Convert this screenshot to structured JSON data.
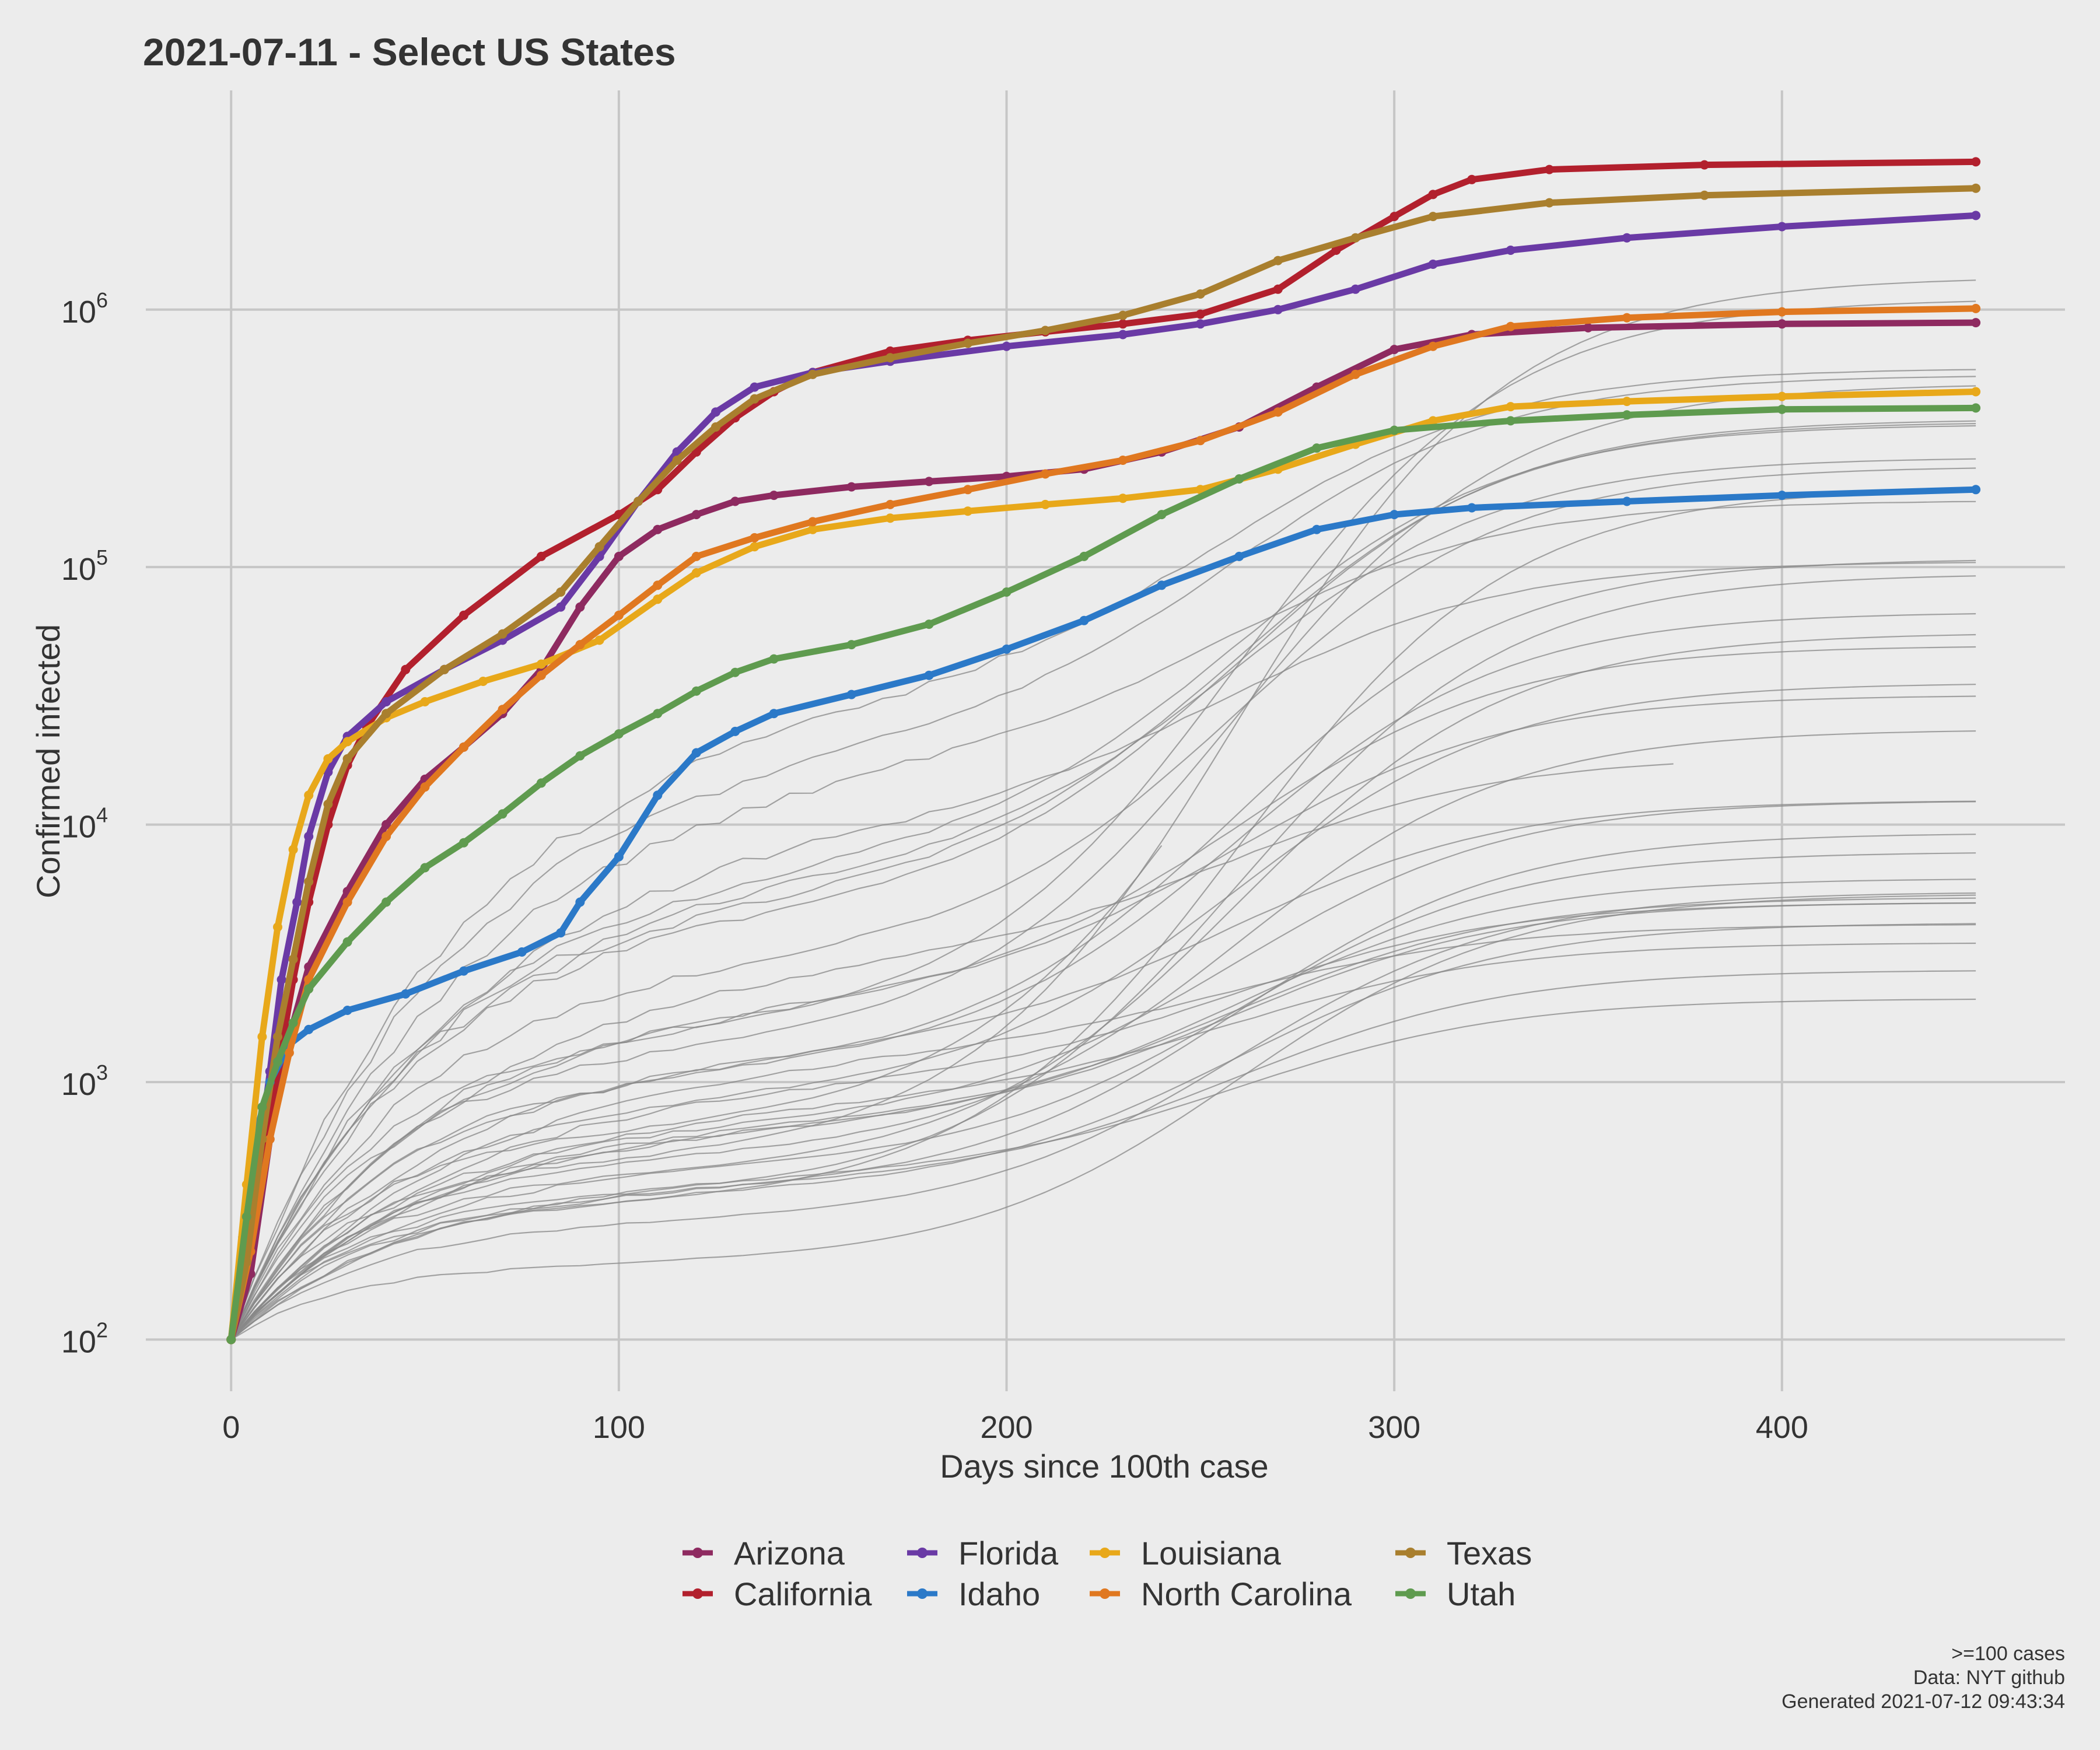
{
  "chart_data": {
    "type": "line",
    "title": "2021-07-11  - Select US States",
    "xlabel": "Days since 100th case",
    "ylabel": "Confirmed infected",
    "y_scale": "log",
    "xlim": [
      -22,
      473
    ],
    "ylim": [
      63,
      7100000
    ],
    "x_ticks": [
      0,
      100,
      200,
      300,
      400
    ],
    "y_ticks": [
      {
        "value": 100,
        "base": "10",
        "exp": "2"
      },
      {
        "value": 1000,
        "base": "10",
        "exp": "3"
      },
      {
        "value": 10000,
        "base": "10",
        "exp": "4"
      },
      {
        "value": 100000,
        "base": "10",
        "exp": "5"
      },
      {
        "value": 1000000,
        "base": "10",
        "exp": "6"
      }
    ],
    "grid": true,
    "legend_position": "bottom",
    "series": [
      {
        "name": "Arizona",
        "color": "#8e2a60",
        "points": [
          [
            0,
            100
          ],
          [
            5,
            180
          ],
          [
            10,
            600
          ],
          [
            15,
            1500
          ],
          [
            20,
            2800
          ],
          [
            30,
            5500
          ],
          [
            40,
            10000
          ],
          [
            50,
            15000
          ],
          [
            60,
            20000
          ],
          [
            70,
            27000
          ],
          [
            80,
            40000
          ],
          [
            90,
            70000
          ],
          [
            100,
            110000
          ],
          [
            110,
            140000
          ],
          [
            120,
            160000
          ],
          [
            130,
            180000
          ],
          [
            140,
            190000
          ],
          [
            160,
            205000
          ],
          [
            180,
            215000
          ],
          [
            200,
            225000
          ],
          [
            220,
            240000
          ],
          [
            240,
            280000
          ],
          [
            260,
            350000
          ],
          [
            280,
            500000
          ],
          [
            300,
            700000
          ],
          [
            320,
            800000
          ],
          [
            350,
            850000
          ],
          [
            400,
            880000
          ],
          [
            450,
            890000
          ]
        ]
      },
      {
        "name": "California",
        "color": "#b2202d",
        "points": [
          [
            0,
            100
          ],
          [
            4,
            200
          ],
          [
            8,
            500
          ],
          [
            12,
            1100
          ],
          [
            16,
            2500
          ],
          [
            20,
            5000
          ],
          [
            25,
            10000
          ],
          [
            30,
            17000
          ],
          [
            35,
            24000
          ],
          [
            45,
            40000
          ],
          [
            60,
            65000
          ],
          [
            80,
            110000
          ],
          [
            100,
            160000
          ],
          [
            110,
            200000
          ],
          [
            120,
            280000
          ],
          [
            130,
            380000
          ],
          [
            140,
            480000
          ],
          [
            150,
            570000
          ],
          [
            170,
            690000
          ],
          [
            190,
            760000
          ],
          [
            210,
            820000
          ],
          [
            230,
            880000
          ],
          [
            250,
            960000
          ],
          [
            270,
            1200000
          ],
          [
            285,
            1700000
          ],
          [
            300,
            2300000
          ],
          [
            310,
            2800000
          ],
          [
            320,
            3200000
          ],
          [
            340,
            3500000
          ],
          [
            380,
            3650000
          ],
          [
            450,
            3750000
          ]
        ]
      },
      {
        "name": "Florida",
        "color": "#6a3aa5",
        "points": [
          [
            0,
            100
          ],
          [
            3,
            200
          ],
          [
            7,
            500
          ],
          [
            10,
            1100
          ],
          [
            13,
            2500
          ],
          [
            17,
            5000
          ],
          [
            20,
            9000
          ],
          [
            25,
            16000
          ],
          [
            30,
            22000
          ],
          [
            40,
            30000
          ],
          [
            55,
            40000
          ],
          [
            70,
            52000
          ],
          [
            85,
            70000
          ],
          [
            95,
            110000
          ],
          [
            105,
            180000
          ],
          [
            115,
            280000
          ],
          [
            125,
            400000
          ],
          [
            135,
            500000
          ],
          [
            150,
            570000
          ],
          [
            170,
            630000
          ],
          [
            200,
            720000
          ],
          [
            230,
            800000
          ],
          [
            250,
            880000
          ],
          [
            270,
            1000000
          ],
          [
            290,
            1200000
          ],
          [
            310,
            1500000
          ],
          [
            330,
            1700000
          ],
          [
            360,
            1900000
          ],
          [
            400,
            2100000
          ],
          [
            450,
            2320000
          ]
        ]
      },
      {
        "name": "Idaho",
        "color": "#2b79c8",
        "points": [
          [
            0,
            100
          ],
          [
            3,
            250
          ],
          [
            6,
            600
          ],
          [
            10,
            1000
          ],
          [
            15,
            1400
          ],
          [
            20,
            1600
          ],
          [
            30,
            1900
          ],
          [
            45,
            2200
          ],
          [
            60,
            2700
          ],
          [
            75,
            3200
          ],
          [
            85,
            3800
          ],
          [
            90,
            5000
          ],
          [
            100,
            7500
          ],
          [
            110,
            13000
          ],
          [
            120,
            19000
          ],
          [
            130,
            23000
          ],
          [
            140,
            27000
          ],
          [
            160,
            32000
          ],
          [
            180,
            38000
          ],
          [
            200,
            48000
          ],
          [
            220,
            62000
          ],
          [
            240,
            85000
          ],
          [
            260,
            110000
          ],
          [
            280,
            140000
          ],
          [
            300,
            160000
          ],
          [
            320,
            170000
          ],
          [
            360,
            180000
          ],
          [
            400,
            190000
          ],
          [
            450,
            200000
          ]
        ]
      },
      {
        "name": "Louisiana",
        "color": "#e8a81a",
        "points": [
          [
            0,
            100
          ],
          [
            4,
            400
          ],
          [
            8,
            1500
          ],
          [
            12,
            4000
          ],
          [
            16,
            8000
          ],
          [
            20,
            13000
          ],
          [
            25,
            18000
          ],
          [
            30,
            21000
          ],
          [
            40,
            26000
          ],
          [
            50,
            30000
          ],
          [
            65,
            36000
          ],
          [
            80,
            42000
          ],
          [
            95,
            52000
          ],
          [
            110,
            75000
          ],
          [
            120,
            95000
          ],
          [
            135,
            120000
          ],
          [
            150,
            140000
          ],
          [
            170,
            155000
          ],
          [
            190,
            165000
          ],
          [
            210,
            175000
          ],
          [
            230,
            185000
          ],
          [
            250,
            200000
          ],
          [
            270,
            240000
          ],
          [
            290,
            300000
          ],
          [
            310,
            370000
          ],
          [
            330,
            420000
          ],
          [
            360,
            440000
          ],
          [
            400,
            460000
          ],
          [
            450,
            480000
          ]
        ]
      },
      {
        "name": "North Carolina",
        "color": "#e07820",
        "points": [
          [
            0,
            100
          ],
          [
            5,
            220
          ],
          [
            10,
            600
          ],
          [
            15,
            1300
          ],
          [
            20,
            2500
          ],
          [
            30,
            5000
          ],
          [
            40,
            9000
          ],
          [
            50,
            14000
          ],
          [
            60,
            20000
          ],
          [
            70,
            28000
          ],
          [
            80,
            38000
          ],
          [
            90,
            50000
          ],
          [
            100,
            65000
          ],
          [
            110,
            85000
          ],
          [
            120,
            110000
          ],
          [
            135,
            130000
          ],
          [
            150,
            150000
          ],
          [
            170,
            175000
          ],
          [
            190,
            200000
          ],
          [
            210,
            230000
          ],
          [
            230,
            260000
          ],
          [
            250,
            310000
          ],
          [
            270,
            400000
          ],
          [
            290,
            560000
          ],
          [
            310,
            720000
          ],
          [
            330,
            860000
          ],
          [
            360,
            930000
          ],
          [
            400,
            980000
          ],
          [
            450,
            1010000
          ]
        ]
      },
      {
        "name": "Texas",
        "color": "#a97f2e",
        "points": [
          [
            0,
            100
          ],
          [
            4,
            200
          ],
          [
            8,
            600
          ],
          [
            12,
            1500
          ],
          [
            16,
            3000
          ],
          [
            20,
            6000
          ],
          [
            25,
            12000
          ],
          [
            30,
            18000
          ],
          [
            40,
            27000
          ],
          [
            55,
            40000
          ],
          [
            70,
            55000
          ],
          [
            85,
            80000
          ],
          [
            95,
            120000
          ],
          [
            105,
            180000
          ],
          [
            115,
            260000
          ],
          [
            125,
            350000
          ],
          [
            135,
            450000
          ],
          [
            150,
            560000
          ],
          [
            170,
            650000
          ],
          [
            190,
            740000
          ],
          [
            210,
            830000
          ],
          [
            230,
            950000
          ],
          [
            250,
            1150000
          ],
          [
            270,
            1550000
          ],
          [
            290,
            1900000
          ],
          [
            310,
            2300000
          ],
          [
            340,
            2600000
          ],
          [
            380,
            2780000
          ],
          [
            450,
            2960000
          ]
        ]
      },
      {
        "name": "Utah",
        "color": "#5f9b4f",
        "points": [
          [
            0,
            100
          ],
          [
            4,
            300
          ],
          [
            8,
            800
          ],
          [
            12,
            1200
          ],
          [
            16,
            1700
          ],
          [
            20,
            2300
          ],
          [
            30,
            3500
          ],
          [
            40,
            5000
          ],
          [
            50,
            6800
          ],
          [
            60,
            8500
          ],
          [
            70,
            11000
          ],
          [
            80,
            14500
          ],
          [
            90,
            18500
          ],
          [
            100,
            22500
          ],
          [
            110,
            27000
          ],
          [
            120,
            33000
          ],
          [
            130,
            39000
          ],
          [
            140,
            44000
          ],
          [
            160,
            50000
          ],
          [
            180,
            60000
          ],
          [
            200,
            80000
          ],
          [
            220,
            110000
          ],
          [
            240,
            160000
          ],
          [
            260,
            220000
          ],
          [
            280,
            290000
          ],
          [
            300,
            340000
          ],
          [
            330,
            370000
          ],
          [
            360,
            390000
          ],
          [
            400,
            410000
          ],
          [
            450,
            415000
          ]
        ]
      }
    ],
    "background_series_color": "#888888"
  },
  "legend": {
    "items": [
      {
        "label": "Arizona",
        "color": "#8e2a60"
      },
      {
        "label": "California",
        "color": "#b2202d"
      },
      {
        "label": "Florida",
        "color": "#6a3aa5"
      },
      {
        "label": "Idaho",
        "color": "#2b79c8"
      },
      {
        "label": "Louisiana",
        "color": "#e8a81a"
      },
      {
        "label": "North Carolina",
        "color": "#e07820"
      },
      {
        "label": "Texas",
        "color": "#a97f2e"
      },
      {
        "label": "Utah",
        "color": "#5f9b4f"
      }
    ]
  },
  "caption": {
    "line1": ">=100 cases",
    "line2": "Data: NYT github",
    "line3": "Generated 2021-07-12 09:43:34"
  }
}
